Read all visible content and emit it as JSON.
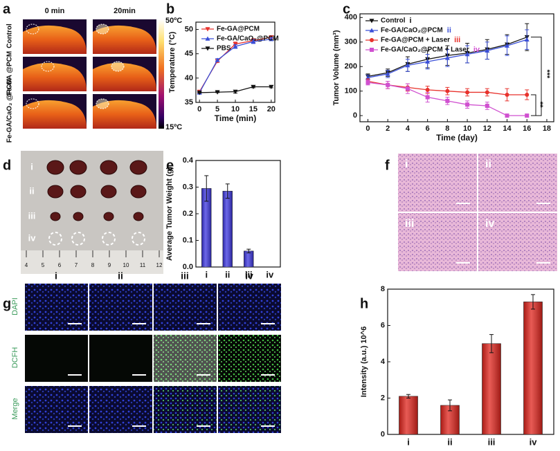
{
  "figure": {
    "a": {
      "label": "a",
      "columns": [
        "0 min",
        "20min"
      ],
      "rows": [
        "Control",
        "Fe-GA @PCM",
        "Fe-GA/CaO₂ @PCM"
      ],
      "scale": [
        "50ºC",
        "15ºC"
      ]
    },
    "d": {
      "label": "d",
      "rows": [
        "i",
        "ii",
        "iii",
        "iv"
      ],
      "ruler": [
        "4",
        "5",
        "6",
        "7",
        "8",
        "9",
        "10",
        "11",
        "12"
      ]
    },
    "f": {
      "label": "f",
      "tiles": [
        "i",
        "ii",
        "iii",
        "iv"
      ]
    },
    "g": {
      "label": "g",
      "columns": [
        "i",
        "ii",
        "iii",
        "iv"
      ],
      "rows": [
        "DAPI",
        "DCFH",
        "Merge"
      ]
    }
  },
  "chart_data": [
    {
      "type": "line",
      "panel": "b",
      "xlabel": "Time (min)",
      "ylabel": "Temperature (°C)",
      "x": [
        0,
        5,
        10,
        15,
        20
      ],
      "xlim": [
        -1,
        21
      ],
      "xticks": [
        0,
        5,
        10,
        15,
        20
      ],
      "ylim": [
        35,
        51.5
      ],
      "yticks": [
        35,
        40,
        45,
        50
      ],
      "legend": "upper-left",
      "series": [
        {
          "name": "Fe-GA@PCM",
          "color": "#e8322c",
          "marker": "down",
          "values": [
            37.2,
            43.5,
            47.0,
            47.7,
            48.4
          ],
          "errors": [
            0.2,
            0.3,
            0.4,
            0.4,
            0.3
          ]
        },
        {
          "name": "Fe-GA/CaO₂@PCM",
          "color": "#3a4fd8",
          "marker": "up",
          "values": [
            37.0,
            43.7,
            46.5,
            47.5,
            48.0
          ],
          "errors": [
            0.2,
            0.3,
            0.4,
            0.4,
            0.3
          ]
        },
        {
          "name": "PBS",
          "color": "#111111",
          "marker": "down",
          "values": [
            37.0,
            37.1,
            37.2,
            38.2,
            38.2
          ],
          "errors": [
            0.1,
            0.1,
            0.3,
            0.2,
            0.2
          ]
        }
      ]
    },
    {
      "type": "line",
      "panel": "c",
      "xlabel": "Time (day)",
      "ylabel": "Tumor Volume (mm³)",
      "x": [
        0,
        2,
        4,
        6,
        8,
        10,
        12,
        14,
        16
      ],
      "xlim": [
        -0.8,
        18.7
      ],
      "xticks": [
        0,
        2,
        4,
        6,
        8,
        10,
        12,
        14,
        16,
        18
      ],
      "ylim": [
        -25,
        415
      ],
      "yticks": [
        0,
        100,
        200,
        300,
        400
      ],
      "legend": "upper-left",
      "annotations": [
        "***",
        "**"
      ],
      "series": [
        {
          "name": "Control",
          "tag": "i",
          "color": "#111111",
          "marker": "down",
          "values": [
            160,
            175,
            210,
            230,
            245,
            255,
            270,
            290,
            320
          ],
          "errors": [
            10,
            15,
            30,
            35,
            40,
            40,
            40,
            40,
            55
          ]
        },
        {
          "name": "Fe-GA/CaO₂@PCM",
          "tag": "ii",
          "color": "#3a4fd8",
          "marker": "up",
          "values": [
            155,
            170,
            205,
            220,
            235,
            250,
            265,
            285,
            310
          ],
          "errors": [
            10,
            15,
            25,
            30,
            35,
            35,
            35,
            40,
            40
          ]
        },
        {
          "name": "Fe-GA@PCM + Laser",
          "tag": "iii",
          "color": "#e8322c",
          "marker": "circle",
          "values": [
            140,
            125,
            115,
            105,
            100,
            95,
            95,
            85,
            85
          ],
          "errors": [
            10,
            15,
            15,
            15,
            15,
            15,
            15,
            25,
            20
          ]
        },
        {
          "name": "Fe-GA/CaO₂@PCM + Laser",
          "tag": "iv",
          "color": "#d050d0",
          "marker": "square",
          "values": [
            135,
            125,
            110,
            75,
            60,
            45,
            40,
            0,
            0
          ],
          "errors": [
            10,
            15,
            20,
            20,
            15,
            15,
            15,
            5,
            5
          ]
        }
      ]
    },
    {
      "type": "bar",
      "panel": "e",
      "ylabel": "Average Tumor Weight (g)",
      "color": "#3b35e0",
      "categories": [
        "i",
        "ii",
        "iii",
        "iv"
      ],
      "values": [
        0.295,
        0.285,
        0.06,
        0
      ],
      "errors": [
        0.048,
        0.027,
        0.007,
        0
      ],
      "ylim": [
        0,
        0.4
      ],
      "yticks": [
        {
          "value": 0,
          "label": "0.0"
        },
        0.1,
        0.2,
        0.3,
        0.4
      ]
    },
    {
      "type": "bar",
      "panel": "h",
      "ylabel": "Intensity (a.u.) 10^6",
      "color": "#e0241c",
      "categories": [
        "i",
        "ii",
        "iii",
        "iv"
      ],
      "values": [
        2.1,
        1.6,
        5.0,
        7.3
      ],
      "errors": [
        0.1,
        0.3,
        0.5,
        0.4
      ],
      "ylim": [
        0,
        8
      ],
      "yticks": [
        0,
        2,
        4,
        6,
        8
      ]
    }
  ]
}
